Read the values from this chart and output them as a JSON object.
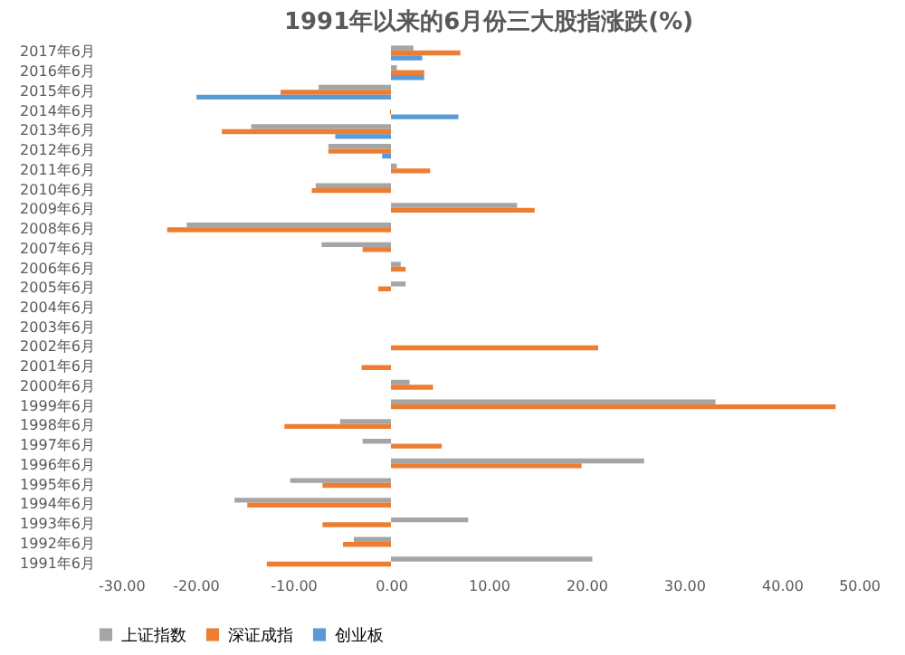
{
  "chart_data": {
    "type": "bar",
    "orientation": "horizontal",
    "title": "1991年以来的6月份三大股指涨跌(%)",
    "categories": [
      "2017年6月",
      "2016年6月",
      "2015年6月",
      "2014年6月",
      "2013年6月",
      "2012年6月",
      "2011年6月",
      "2010年6月",
      "2009年6月",
      "2008年6月",
      "2007年6月",
      "2006年6月",
      "2005年6月",
      "2004年6月",
      "2003年6月",
      "2002年6月",
      "2001年6月",
      "2000年6月",
      "1999年6月",
      "1998年6月",
      "1997年6月",
      "1996年6月",
      "1995年6月",
      "1994年6月",
      "1993年6月",
      "1992年6月",
      "1991年6月"
    ],
    "series": [
      {
        "name": "上证指数",
        "color": "#a5a5a5",
        "values": [
          2.3,
          0.6,
          -7.4,
          null,
          -14.3,
          -6.4,
          0.6,
          -7.7,
          12.9,
          -20.9,
          -7.1,
          1.0,
          1.5,
          null,
          null,
          null,
          null,
          1.9,
          33.2,
          -5.2,
          -2.9,
          25.9,
          -10.3,
          -16.0,
          7.9,
          -3.8,
          20.6
        ]
      },
      {
        "name": "深证成指",
        "color": "#ed7d31",
        "values": [
          7.1,
          3.4,
          -11.3,
          -0.1,
          -17.3,
          -6.4,
          4.0,
          -8.1,
          14.7,
          -22.9,
          -2.9,
          1.5,
          -1.3,
          null,
          null,
          21.2,
          -3.0,
          4.3,
          45.5,
          -10.9,
          5.2,
          19.5,
          -7.0,
          -14.7,
          -7.0,
          -4.9,
          -12.7
        ]
      },
      {
        "name": "创业板",
        "color": "#5b9bd5",
        "values": [
          3.2,
          3.4,
          -19.9,
          6.9,
          -5.7,
          -0.9,
          0,
          null,
          null,
          null,
          null,
          null,
          null,
          null,
          null,
          null,
          null,
          null,
          null,
          null,
          null,
          null,
          null,
          null,
          null,
          null,
          null
        ]
      }
    ],
    "xlim": [
      -30,
      50
    ],
    "xticks": [
      {
        "value": -30,
        "label": "-30.00"
      },
      {
        "value": -20,
        "label": "-20.00"
      },
      {
        "value": -10,
        "label": "-10.00"
      },
      {
        "value": 0,
        "label": "0.00"
      },
      {
        "value": 10,
        "label": "10.00"
      },
      {
        "value": 20,
        "label": "20.00"
      },
      {
        "value": 30,
        "label": "30.00"
      },
      {
        "value": 40,
        "label": "40.00"
      },
      {
        "value": 50,
        "label": "50.00"
      }
    ],
    "legend": "bottom"
  }
}
